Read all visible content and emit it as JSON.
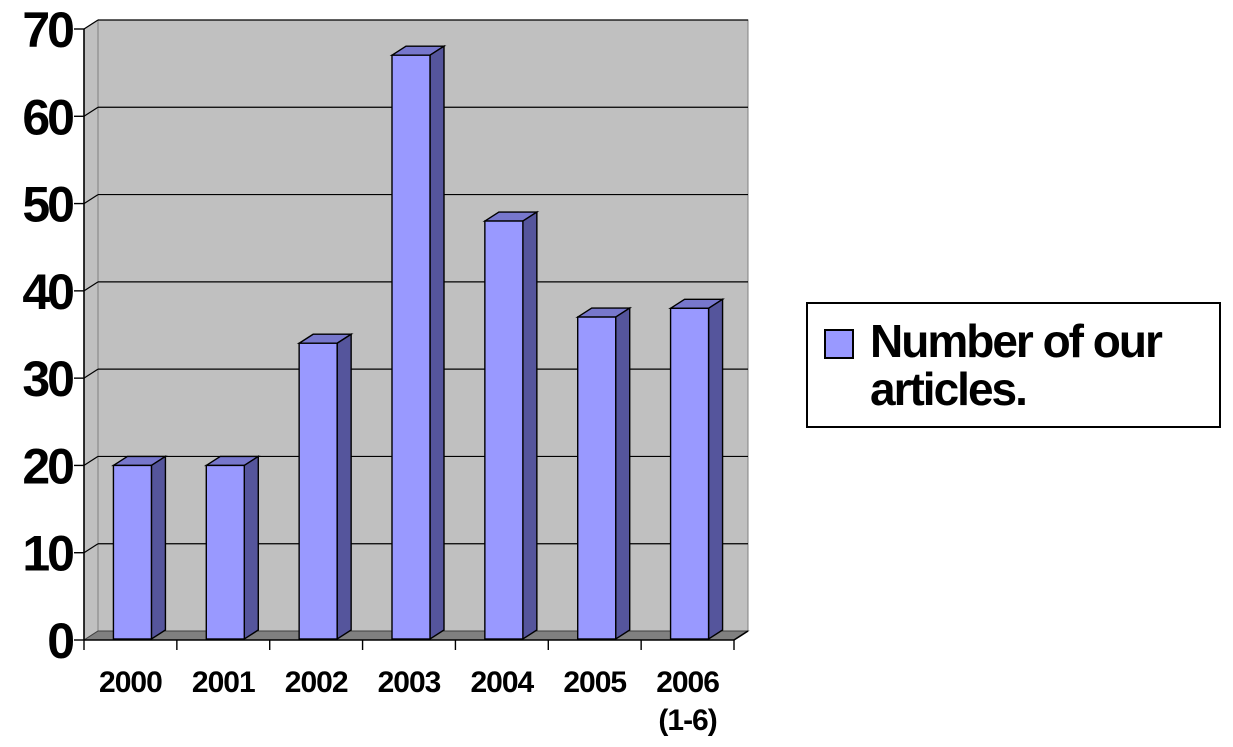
{
  "chart_data": {
    "type": "bar",
    "categories": [
      "2000",
      "2001",
      "2002",
      "2003",
      "2004",
      "2005",
      "2006 (1-6)"
    ],
    "category_lines": [
      [
        "2000"
      ],
      [
        "2001"
      ],
      [
        "2002"
      ],
      [
        "2003"
      ],
      [
        "2004"
      ],
      [
        "2005"
      ],
      [
        "2006",
        "(1-6)"
      ]
    ],
    "series": [
      {
        "name": "Number of  our articles.",
        "values": [
          20,
          20,
          34,
          67,
          48,
          37,
          38
        ]
      }
    ],
    "yticks": [
      "0",
      "10",
      "20",
      "30",
      "40",
      "50",
      "60",
      "70"
    ],
    "ylim": [
      0,
      70
    ],
    "grid": true,
    "legend_position": "right",
    "style": "3d-column",
    "colors": {
      "bar_front": "#9999ff",
      "bar_side": "#55559c",
      "bar_top": "#7777cc",
      "plot_background": "#c0c0c0",
      "floor": "#808080"
    }
  },
  "legend": {
    "label": "Number of  our articles."
  }
}
